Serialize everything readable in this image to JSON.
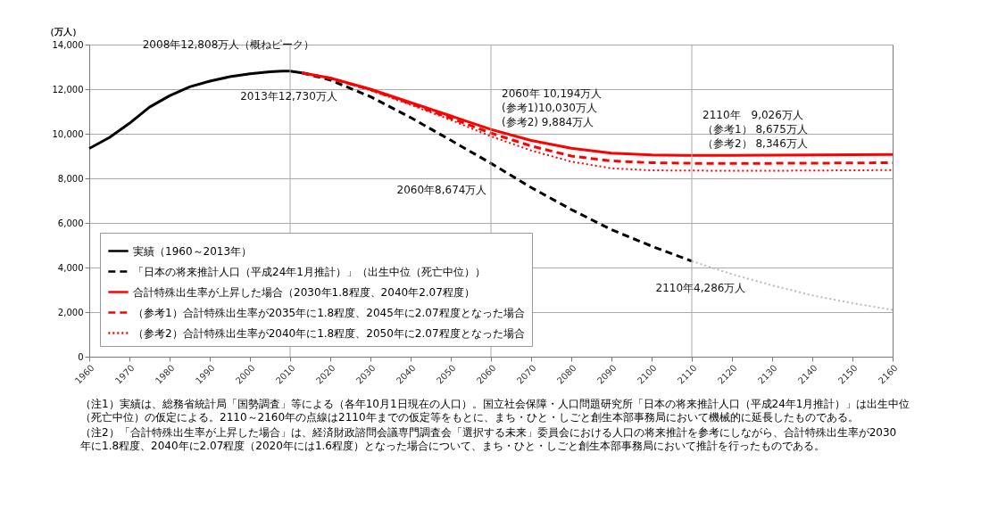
{
  "chart_data": {
    "type": "line",
    "ylabel": "（万人）",
    "xlim": [
      1960,
      2160
    ],
    "xticks": [
      1960,
      1970,
      1980,
      1990,
      2000,
      2010,
      2020,
      2030,
      2040,
      2050,
      2060,
      2070,
      2080,
      2090,
      2100,
      2110,
      2120,
      2130,
      2140,
      2150,
      2160
    ],
    "ylim": [
      0,
      14000
    ],
    "yticks": [
      0,
      {
        "value": 2000,
        "label": "2,000"
      },
      {
        "value": 4000,
        "label": "4,000"
      },
      {
        "value": 6000,
        "label": "6,000"
      },
      {
        "value": 8000,
        "label": "8,000"
      },
      {
        "value": 10000,
        "label": "10,000"
      },
      {
        "value": 12000,
        "label": "12,000"
      },
      {
        "value": 14000,
        "label": "14,000"
      }
    ],
    "grid": "y",
    "legend": "bottom left",
    "marker": "none",
    "ref_lines": [
      {
        "axis": "x",
        "value": 2010,
        "color": "#aaaaaa"
      },
      {
        "axis": "x",
        "value": 2060,
        "color": "#aaaaaa"
      },
      {
        "axis": "x",
        "value": 2110,
        "color": "#aaaaaa"
      }
    ],
    "series": [
      {
        "name": "実績（1960～2013年）",
        "color": "#000000",
        "line_style": "solid",
        "x": [
          1960,
          1965,
          1970,
          1975,
          1980,
          1985,
          1990,
          1995,
          2000,
          2005,
          2008,
          2010,
          2013
        ],
        "values": [
          9342,
          9828,
          10467,
          11194,
          11706,
          12105,
          12361,
          12557,
          12693,
          12777,
          12808,
          12806,
          12730
        ]
      },
      {
        "name": "「日本の将来推計人口（平成24年1月推計）」（出生中位（死亡中位））",
        "color": "#000000",
        "line_style": "dashed",
        "x": [
          2013,
          2020,
          2030,
          2040,
          2050,
          2060,
          2070,
          2080,
          2090,
          2100,
          2110
        ],
        "values": [
          12730,
          12410,
          11662,
          10728,
          9708,
          8674,
          7590,
          6600,
          5700,
          4959,
          4286
        ]
      },
      {
        "name": "合計特殊出生率が上昇した場合（2030年1.8程度、2040年2.07程度）",
        "color": "#ff0000",
        "line_style": "solid",
        "x": [
          2013,
          2020,
          2030,
          2040,
          2050,
          2060,
          2070,
          2080,
          2090,
          2100,
          2110,
          2120,
          2130,
          2140,
          2150,
          2160
        ],
        "values": [
          12730,
          12500,
          12000,
          11400,
          10800,
          10194,
          9700,
          9350,
          9130,
          9050,
          9026,
          9030,
          9040,
          9050,
          9060,
          9070
        ]
      },
      {
        "name": "（参考1）合計特殊出生率が2035年に1.8程度、2045年に2.07程度となった場合",
        "color": "#ff0000",
        "line_style": "dashed",
        "x": [
          2013,
          2020,
          2030,
          2040,
          2050,
          2060,
          2070,
          2080,
          2090,
          2100,
          2110,
          2120,
          2140,
          2160
        ],
        "values": [
          12730,
          12490,
          11980,
          11350,
          10700,
          10030,
          9450,
          9000,
          8780,
          8700,
          8675,
          8670,
          8680,
          8700
        ]
      },
      {
        "name": "（参考2）合計特殊出生率が2040年に1.8程度、2050年に2.07程度となった場合",
        "color": "#ff0000",
        "line_style": "dotted",
        "x": [
          2013,
          2020,
          2030,
          2040,
          2050,
          2060,
          2070,
          2080,
          2090,
          2100,
          2110,
          2130,
          2160
        ],
        "values": [
          12730,
          12480,
          11950,
          11300,
          10620,
          9884,
          9250,
          8750,
          8450,
          8360,
          8346,
          8340,
          8370
        ]
      },
      {
        "color": "#bbbbbb",
        "line_style": "dotted",
        "x": [
          2110,
          2120,
          2130,
          2140,
          2150,
          2160
        ],
        "values": [
          4286,
          3700,
          3200,
          2750,
          2400,
          2100
        ]
      }
    ],
    "annotations": [
      {
        "text": "2008年12,808万人（概ねピーク）",
        "x": 2008,
        "y": 12808
      },
      {
        "text": "2013年12,730万人",
        "x": 2013,
        "y": 12730
      },
      {
        "text": "2060年 10,194万人\n(参考1)10,030万人\n(参考2) 9,884万人",
        "x": 2060,
        "y": 10194
      },
      {
        "text": "2060年8,674万人",
        "x": 2060,
        "y": 8674
      },
      {
        "text": "2110年　9,026万人（参考1） 8,675万人（参考2） 8,346万人",
        "x": 2110,
        "y": 9026
      },
      {
        "text": "2110年4,286万人",
        "x": 2110,
        "y": 4286
      },
      "（注1）実績は、総務省統計局「国勢調査」等による（各年10月1日現在の人口）。国立社会保障・人口問題研究所「日本の将来推計人口（平成24年1月推計）」は出生中位（死亡中位）の仮定による。2110～2160年の点線は2110年までの仮定等をもとに、まち・ひと・しごと創生本部事務局において機械的に延長したものである。",
      "（注2）「合計特殊出生率が上昇した場合」は、経済財政諮問会議専門調査会「選択する未来」委員会における人口の将来推計を参考にしながら、合計特殊出生率が2030年に1.8程度、2040年に2.07程度（2020年には1.6程度）となった場合について、まち・ひと・しごと創生本部事務局において推計を行ったものである。"
    ]
  }
}
